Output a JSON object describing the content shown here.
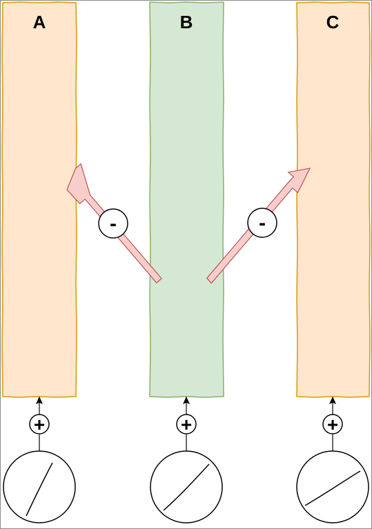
{
  "columns": [
    {
      "label": "A",
      "fill": "#ffe6cc",
      "stroke": "#d79b00"
    },
    {
      "label": "B",
      "fill": "#d5e8d4",
      "stroke": "#82b366"
    },
    {
      "label": "C",
      "fill": "#ffe6cc",
      "stroke": "#d79b00"
    }
  ],
  "arrows": [
    {
      "sign": "-",
      "fill": "#f8cecc",
      "stroke": "#b85450"
    },
    {
      "sign": "-",
      "fill": "#f8cecc",
      "stroke": "#b85450"
    }
  ],
  "inputs": [
    {
      "sign": "+"
    },
    {
      "sign": "+"
    },
    {
      "sign": "+"
    }
  ]
}
